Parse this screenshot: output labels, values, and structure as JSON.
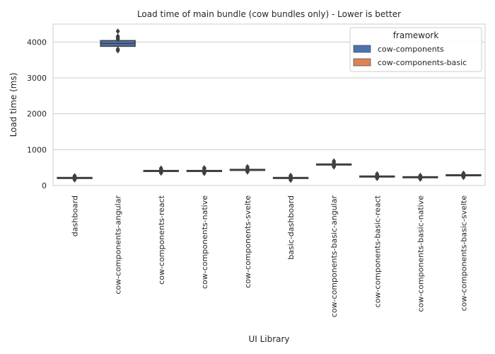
{
  "chart_data": {
    "type": "box",
    "title": "Load time of main bundle (cow bundles only) - Lower is better",
    "xlabel": "UI Library",
    "ylabel": "Load time (ms)",
    "ylim": [
      0,
      4500
    ],
    "yticks": [
      0,
      1000,
      2000,
      3000,
      4000
    ],
    "grid": true,
    "legend": {
      "title": "framework",
      "position": "top-right",
      "entries": [
        {
          "name": "cow-components",
          "color": "#4c72b0"
        },
        {
          "name": "cow-components-basic",
          "color": "#dd8452"
        }
      ]
    },
    "categories": [
      "dashboard",
      "cow-components-angular",
      "cow-components-react",
      "cow-components-native",
      "cow-components-svelte",
      "basic-dashboard",
      "cow-components-basic-angular",
      "cow-components-basic-react",
      "cow-components-basic-native",
      "cow-components-basic-svelte"
    ],
    "boxes": [
      {
        "category": "dashboard",
        "framework": "cow-components",
        "q1": 205,
        "median": 215,
        "q3": 225,
        "whisker_low": 200,
        "whisker_high": 230,
        "outliers": [
          160,
          185,
          250,
          270
        ]
      },
      {
        "category": "cow-components-angular",
        "framework": "cow-components",
        "q1": 3880,
        "median": 3960,
        "q3": 4040,
        "whisker_low": 3860,
        "whisker_high": 4060,
        "outliers": [
          3760,
          3800,
          4080,
          4120,
          4160,
          4300
        ]
      },
      {
        "category": "cow-components-react",
        "framework": "cow-components",
        "q1": 400,
        "median": 410,
        "q3": 420,
        "whisker_low": 395,
        "whisker_high": 425,
        "outliers": [
          350,
          370,
          450,
          480
        ]
      },
      {
        "category": "cow-components-native",
        "framework": "cow-components",
        "q1": 400,
        "median": 410,
        "q3": 420,
        "whisker_low": 395,
        "whisker_high": 425,
        "outliers": [
          340,
          370,
          460,
          490
        ]
      },
      {
        "category": "cow-components-svelte",
        "framework": "cow-components",
        "q1": 430,
        "median": 440,
        "q3": 450,
        "whisker_low": 425,
        "whisker_high": 455,
        "outliers": [
          380,
          400,
          480,
          520
        ]
      },
      {
        "category": "basic-dashboard",
        "framework": "cow-components-basic",
        "q1": 205,
        "median": 215,
        "q3": 225,
        "whisker_low": 200,
        "whisker_high": 230,
        "outliers": [
          150,
          180,
          250,
          280
        ]
      },
      {
        "category": "cow-components-basic-angular",
        "framework": "cow-components-basic",
        "q1": 580,
        "median": 590,
        "q3": 600,
        "whisker_low": 575,
        "whisker_high": 605,
        "outliers": [
          520,
          550,
          640,
          680
        ]
      },
      {
        "category": "cow-components-basic-react",
        "framework": "cow-components-basic",
        "q1": 245,
        "median": 255,
        "q3": 265,
        "whisker_low": 240,
        "whisker_high": 270,
        "outliers": [
          200,
          220,
          290,
          320
        ]
      },
      {
        "category": "cow-components-basic-native",
        "framework": "cow-components-basic",
        "q1": 225,
        "median": 235,
        "q3": 245,
        "whisker_low": 220,
        "whisker_high": 250,
        "outliers": [
          180,
          200,
          260,
          280
        ]
      },
      {
        "category": "cow-components-basic-svelte",
        "framework": "cow-components-basic",
        "q1": 280,
        "median": 290,
        "q3": 300,
        "whisker_low": 275,
        "whisker_high": 305,
        "outliers": [
          230,
          250,
          320,
          340
        ]
      }
    ]
  }
}
